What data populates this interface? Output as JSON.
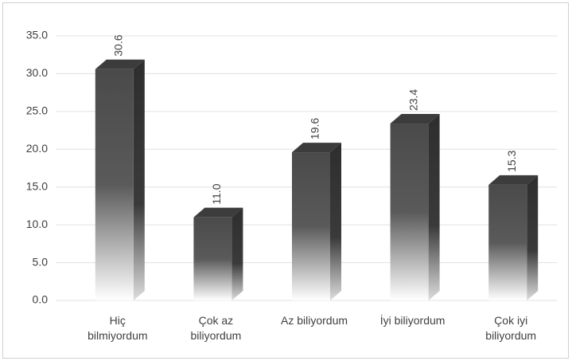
{
  "chart_data": {
    "type": "bar3d",
    "categories": [
      "Hiç\nbilmiyordum",
      "Çok az\nbiliyordum",
      "Az biliyordum",
      "İyi biliyordum",
      "Çok iyi\nbiliyordum"
    ],
    "values": [
      30.6,
      11.0,
      19.6,
      23.4,
      15.3
    ],
    "value_labels": [
      "30.6",
      "11.0",
      "19.6",
      "23.4",
      "15.3"
    ],
    "color": "#4a4a4a",
    "ylim": [
      0,
      35
    ],
    "yticks": [
      {
        "value": 0,
        "label": "0.0"
      },
      {
        "value": 5,
        "label": "5.0"
      },
      {
        "value": 10,
        "label": "10.0"
      },
      {
        "value": 15,
        "label": "15.0"
      },
      {
        "value": 20,
        "label": "20.0"
      },
      {
        "value": 25,
        "label": "25.0"
      },
      {
        "value": 30,
        "label": "30.0"
      },
      {
        "value": 35,
        "label": "35.0"
      }
    ],
    "grid": true
  }
}
